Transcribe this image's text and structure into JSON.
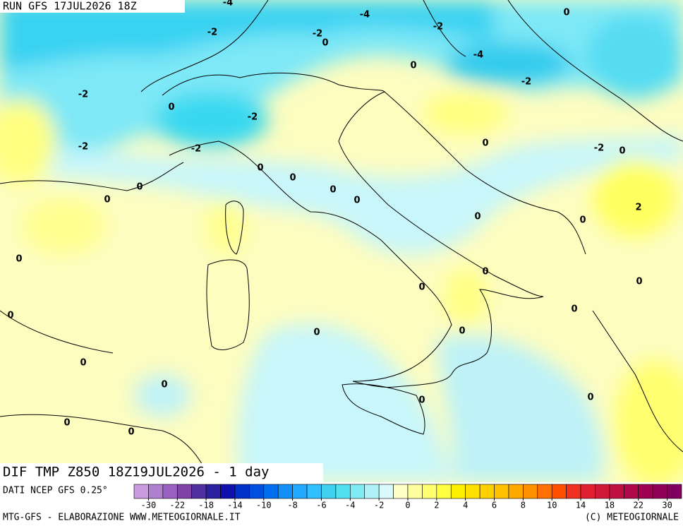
{
  "header": {
    "run": "RUN GFS 17JUL2026 18Z"
  },
  "map": {
    "title": "DIF TMP Z850 18Z19JUL2026 - 1 day",
    "contour_labels": [
      -4,
      -4,
      0,
      -2,
      -2,
      0,
      -2,
      -4,
      0,
      -2,
      -2,
      0,
      -2,
      -2,
      -2,
      -2,
      0,
      0,
      0,
      0,
      0,
      0,
      0,
      0,
      2,
      0,
      0,
      0,
      0,
      0,
      0,
      0,
      0,
      0,
      0,
      0,
      0,
      0,
      0,
      0,
      0
    ]
  },
  "colorbar": {
    "source": "DATI NCEP GFS 0.25°",
    "colors": [
      "#c89be0",
      "#b07fd0",
      "#9860c0",
      "#7f40a8",
      "#5030a0",
      "#2a20a0",
      "#1010b0",
      "#0030c8",
      "#0050e0",
      "#0070f0",
      "#1090f8",
      "#20a8ff",
      "#30c0ff",
      "#40d0f0",
      "#50e0f0",
      "#80eaf5",
      "#b0f2f8",
      "#d8fafc",
      "#ffffc8",
      "#ffff9e",
      "#ffff70",
      "#ffff40",
      "#fff000",
      "#ffe000",
      "#ffd000",
      "#ffc000",
      "#ffa800",
      "#ff9000",
      "#ff7000",
      "#ff5000",
      "#f03020",
      "#e02030",
      "#d01838",
      "#c01040",
      "#b00848",
      "#a00050",
      "#900058",
      "#800060"
    ],
    "ticks": [
      -30,
      -22,
      -18,
      -14,
      -10,
      -8,
      -6,
      -4,
      -2,
      0,
      2,
      4,
      6,
      8,
      10,
      14,
      18,
      22,
      30
    ]
  },
  "footer": {
    "left": "MTG-GFS - ELABORAZIONE WWW.METEOGIORNALE.IT",
    "right": "(C) METEOGIORNALE"
  }
}
